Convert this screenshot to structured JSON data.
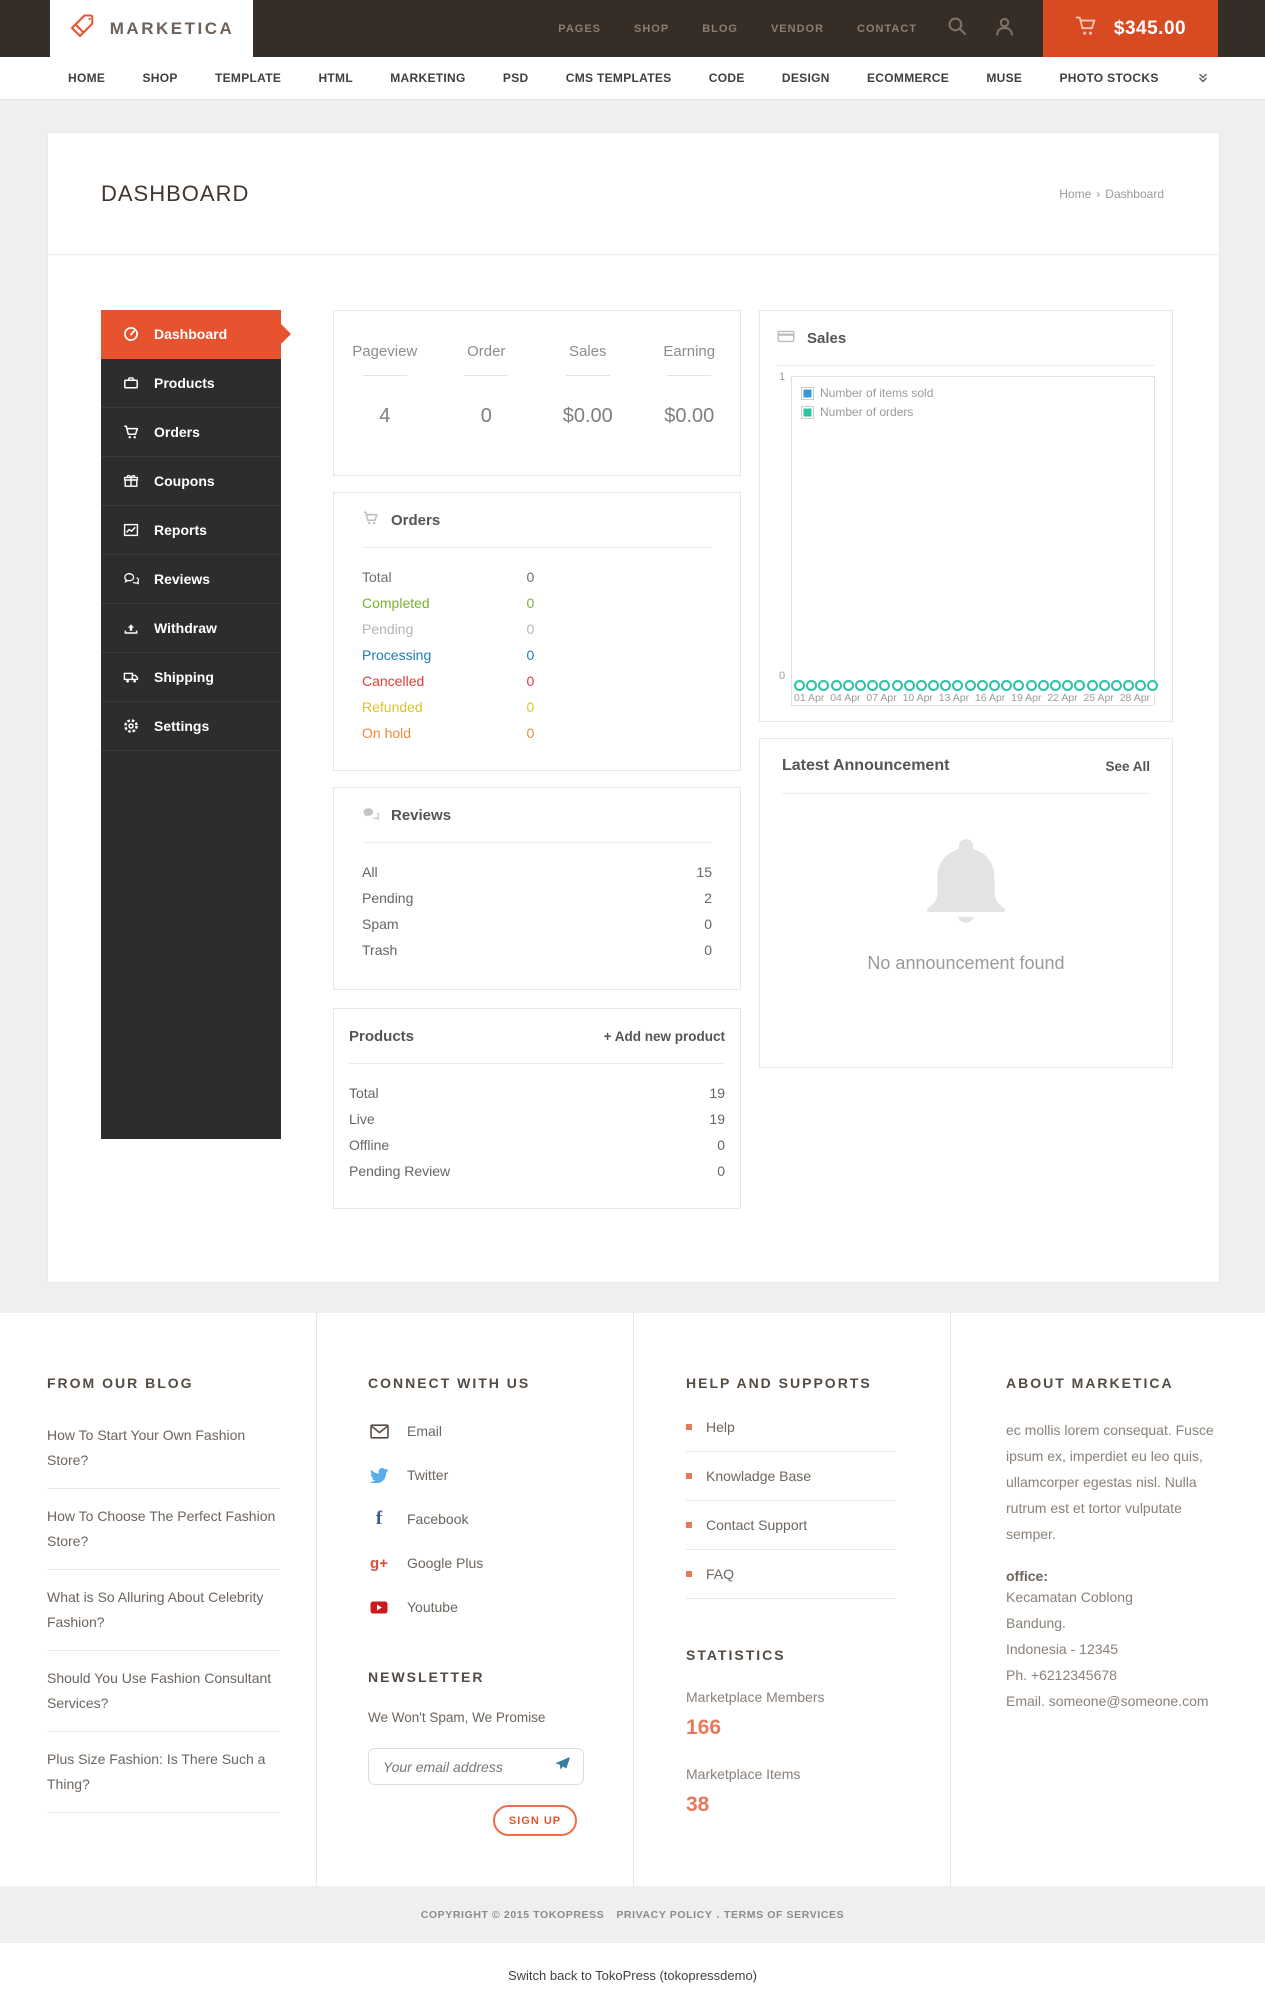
{
  "brand": {
    "name": "MARKETICA"
  },
  "topbar": {
    "links": [
      "PAGES",
      "SHOP",
      "BLOG",
      "VENDOR",
      "CONTACT"
    ],
    "cart_total": "$345.00"
  },
  "navbar": {
    "links": [
      "HOME",
      "SHOP",
      "TEMPLATE",
      "HTML",
      "MARKETING",
      "PSD",
      "CMS TEMPLATES",
      "CODE",
      "DESIGN",
      "ECOMMERCE",
      "MUSE",
      "PHOTO STOCKS"
    ]
  },
  "page": {
    "title": "DASHBOARD",
    "breadcrumb": {
      "home": "Home",
      "separator": "›",
      "current": "Dashboard"
    }
  },
  "sidebar": {
    "items": [
      {
        "label": "Dashboard",
        "icon": "dashboard-icon",
        "active": true
      },
      {
        "label": "Products",
        "icon": "briefcase-icon",
        "active": false
      },
      {
        "label": "Orders",
        "icon": "cart-icon",
        "active": false
      },
      {
        "label": "Coupons",
        "icon": "gift-icon",
        "active": false
      },
      {
        "label": "Reports",
        "icon": "line-chart-icon",
        "active": false
      },
      {
        "label": "Reviews",
        "icon": "comments-icon",
        "active": false
      },
      {
        "label": "Withdraw",
        "icon": "upload-icon",
        "active": false
      },
      {
        "label": "Shipping",
        "icon": "truck-icon",
        "active": false
      },
      {
        "label": "Settings",
        "icon": "gear-icon",
        "active": false
      }
    ]
  },
  "stats": {
    "items": [
      {
        "label": "Pageview",
        "value": "4"
      },
      {
        "label": "Order",
        "value": "0"
      },
      {
        "label": "Sales",
        "value": "$0.00"
      },
      {
        "label": "Earning",
        "value": "$0.00"
      }
    ]
  },
  "orders_panel": {
    "title": "Orders",
    "rows": [
      {
        "label": "Total",
        "value": "0",
        "color": "#6d6d6d"
      },
      {
        "label": "Completed",
        "value": "0",
        "color": "#7ab231"
      },
      {
        "label": "Pending",
        "value": "0",
        "color": "#b5b5b5"
      },
      {
        "label": "Processing",
        "value": "0",
        "color": "#1f7bb6"
      },
      {
        "label": "Cancelled",
        "value": "0",
        "color": "#dd3d36"
      },
      {
        "label": "Refunded",
        "value": "0",
        "color": "#d9c427"
      },
      {
        "label": "On hold",
        "value": "0",
        "color": "#f0883e"
      }
    ]
  },
  "sales_panel": {
    "title": "Sales",
    "chart_data": {
      "type": "line",
      "x_ticks": [
        "01 Apr",
        "04 Apr",
        "07 Apr",
        "10 Apr",
        "13 Apr",
        "16 Apr",
        "19 Apr",
        "22 Apr",
        "25 Apr",
        "28 Apr"
      ],
      "ylim": [
        0,
        1
      ],
      "y_ticks": [
        "1",
        "0"
      ],
      "grid": false,
      "legend_position": "top-left",
      "series": [
        {
          "name": "Number of items sold",
          "color": "#3598db",
          "values": [
            0,
            0,
            0,
            0,
            0,
            0,
            0,
            0,
            0,
            0,
            0,
            0,
            0,
            0,
            0,
            0,
            0,
            0,
            0,
            0,
            0,
            0,
            0,
            0,
            0,
            0,
            0,
            0,
            0,
            0
          ]
        },
        {
          "name": "Number of orders",
          "color": "#2cc2a5",
          "values": [
            0,
            0,
            0,
            0,
            0,
            0,
            0,
            0,
            0,
            0,
            0,
            0,
            0,
            0,
            0,
            0,
            0,
            0,
            0,
            0,
            0,
            0,
            0,
            0,
            0,
            0,
            0,
            0,
            0,
            0
          ]
        }
      ]
    }
  },
  "reviews_panel": {
    "title": "Reviews",
    "rows": [
      {
        "label": "All",
        "value": "15"
      },
      {
        "label": "Pending",
        "value": "2"
      },
      {
        "label": "Spam",
        "value": "0"
      },
      {
        "label": "Trash",
        "value": "0"
      }
    ]
  },
  "products_panel": {
    "title": "Products",
    "action": "+ Add new product",
    "rows": [
      {
        "label": "Total",
        "value": "19"
      },
      {
        "label": "Live",
        "value": "19"
      },
      {
        "label": "Offline",
        "value": "0"
      },
      {
        "label": "Pending Review",
        "value": "0"
      }
    ]
  },
  "announcement_panel": {
    "title": "Latest Announcement",
    "action": "See All",
    "empty_text": "No announcement found"
  },
  "footer": {
    "blog": {
      "heading": "FROM OUR BLOG",
      "items": [
        "How To Start Your Own Fashion Store?",
        "How To Choose The Perfect Fashion Store?",
        "What is So Alluring About Celebrity Fashion?",
        "Should You Use Fashion Consultant Services?",
        "Plus Size Fashion: Is There Such a Thing?"
      ]
    },
    "connect": {
      "heading": "CONNECT WITH US",
      "items": [
        {
          "label": "Email",
          "icon": "email-icon"
        },
        {
          "label": "Twitter",
          "icon": "twitter-icon"
        },
        {
          "label": "Facebook",
          "icon": "facebook-icon"
        },
        {
          "label": "Google Plus",
          "icon": "google-plus-icon"
        },
        {
          "label": "Youtube",
          "icon": "youtube-icon"
        }
      ]
    },
    "newsletter": {
      "heading": "NEWSLETTER",
      "text": "We Won't Spam, We Promise",
      "placeholder": "Your email address",
      "button": "SIGN UP"
    },
    "help": {
      "heading": "HELP AND SUPPORTS",
      "items": [
        "Help",
        "Knowladge Base",
        "Contact Support",
        "FAQ"
      ]
    },
    "statistics": {
      "heading": "STATISTICS",
      "items": [
        {
          "label": "Marketplace Members",
          "value": "166"
        },
        {
          "label": "Marketplace Items",
          "value": "38"
        }
      ]
    },
    "about": {
      "heading": "ABOUT MARKETICA",
      "text": "ec mollis lorem consequat. Fusce ipsum ex, imperdiet eu leo quis, ullamcorper egestas nisl. Nulla rutrum est et tortor vulputate semper.",
      "office_label": "office:",
      "office_lines": [
        "Kecamatan Coblong",
        "Bandung.",
        "Indonesia - 12345",
        "Ph. +6212345678",
        "Email. someone@someone.com"
      ]
    }
  },
  "copyright": {
    "text": "COPYRIGHT © 2015 TOKOPRESS",
    "privacy": "PRIVACY POLICY",
    "separator": ".",
    "terms": "TERMS OF SERVICES"
  },
  "switch_back": "Switch back to TokoPress (tokopressdemo)",
  "colors": {
    "accent": "#e8532f",
    "header": "#372d27",
    "sidebar": "#2d2d2d"
  }
}
